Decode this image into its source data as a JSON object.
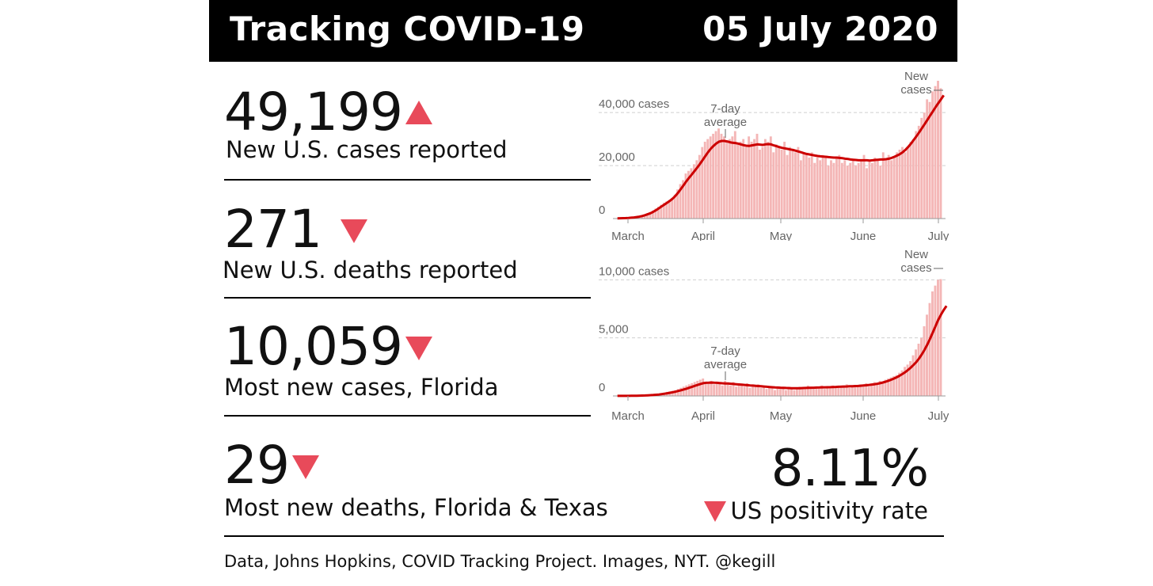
{
  "header": {
    "title": "Tracking COVID-19",
    "date": "05 July 2020"
  },
  "stats": [
    {
      "value": "49,199",
      "direction": "up",
      "label": "New U.S. cases reported"
    },
    {
      "value": "271",
      "direction": "down",
      "label": "New U.S. deaths reported"
    },
    {
      "value": "10,059",
      "direction": "down",
      "label": "Most new cases, Florida"
    },
    {
      "value": "29",
      "direction": "down",
      "label": "Most new deaths, Florida & Texas"
    }
  ],
  "positivity": {
    "value": "8.11%",
    "direction": "down",
    "label": "US positivity rate"
  },
  "footer": "Data, Johns Hopkins, COVID Tracking Project. Images, NYT. @kegill",
  "colors": {
    "bar": "#f4b6b6",
    "line": "#cc0000",
    "arrow": "#e84a5a"
  },
  "chart_data": [
    {
      "type": "bar",
      "title": "",
      "unit_label": "40,000 cases",
      "xlabel": "",
      "ylabel": "",
      "ylim": [
        0,
        52000
      ],
      "y_ticks": [
        0,
        20000,
        40000
      ],
      "y_tick_labels": [
        "0",
        "20,000",
        "40,000 cases"
      ],
      "x_ticks": [
        "March",
        "April",
        "May",
        "June",
        "July"
      ],
      "annotations": {
        "average": [
          "7-day",
          "average"
        ],
        "bars": [
          "New",
          "cases"
        ]
      },
      "series": [
        {
          "kind": "bars",
          "values": [
            100,
            120,
            150,
            200,
            300,
            400,
            500,
            700,
            900,
            1200,
            1600,
            2000,
            2500,
            3000,
            3800,
            4500,
            5200,
            6000,
            6500,
            7000,
            7800,
            9000,
            11000,
            13000,
            14500,
            17000,
            18000,
            19000,
            20500,
            22000,
            24000,
            27000,
            29000,
            30000,
            31000,
            32000,
            33000,
            34000,
            32000,
            31000,
            29000,
            30000,
            31000,
            33000,
            28000,
            29000,
            30000,
            27000,
            31000,
            29000,
            30000,
            32000,
            26000,
            27000,
            30000,
            29000,
            31000,
            25000,
            28000,
            27000,
            26000,
            29000,
            24000,
            27000,
            26000,
            25000,
            27000,
            22000,
            25000,
            24000,
            23000,
            25000,
            21000,
            23000,
            22000,
            24000,
            23000,
            20000,
            22000,
            21000,
            23000,
            24000,
            21000,
            22000,
            20000,
            21000,
            22000,
            20000,
            21000,
            22000,
            24000,
            19000,
            22000,
            21000,
            23000,
            22000,
            20000,
            25000,
            22000,
            24000,
            22000,
            23000,
            25000,
            26000,
            27000,
            25000,
            27000,
            29000,
            30000,
            33000,
            35000,
            38000,
            40000,
            45000,
            44000,
            48000,
            50000,
            52000,
            49199
          ]
        },
        {
          "kind": "line",
          "name": "7-day average",
          "values": [
            100,
            120,
            140,
            180,
            250,
            330,
            430,
            560,
            720,
            950,
            1250,
            1600,
            2000,
            2500,
            3100,
            3800,
            4500,
            5200,
            5900,
            6600,
            7400,
            8400,
            9600,
            11000,
            12400,
            13900,
            15200,
            16500,
            17800,
            19100,
            20500,
            22000,
            23500,
            25000,
            26300,
            27400,
            28300,
            29000,
            29300,
            29300,
            29100,
            28800,
            28600,
            28500,
            28300,
            28000,
            27700,
            27500,
            27400,
            27600,
            27800,
            28000,
            27900,
            27800,
            28000,
            28100,
            28000,
            27600,
            27300,
            27000,
            26700,
            26500,
            26300,
            26100,
            25900,
            25600,
            25300,
            25000,
            24700,
            24400,
            24200,
            24000,
            23800,
            23600,
            23500,
            23400,
            23300,
            23200,
            23100,
            23000,
            23000,
            22900,
            22800,
            22600,
            22500,
            22300,
            22200,
            22100,
            22000,
            22000,
            22000,
            22000,
            21900,
            22000,
            22100,
            22200,
            22300,
            22300,
            22400,
            22600,
            22900,
            23300,
            23800,
            24300,
            25000,
            25900,
            27000,
            28200,
            29600,
            31000,
            32500,
            34000,
            35600,
            37200,
            38800,
            40400,
            42000,
            43500,
            45000,
            46500
          ]
        }
      ]
    },
    {
      "type": "bar",
      "title": "",
      "unit_label": "10,000 cases",
      "xlabel": "",
      "ylabel": "",
      "ylim": [
        0,
        12000
      ],
      "y_ticks": [
        0,
        5000,
        10000
      ],
      "y_tick_labels": [
        "0",
        "5,000",
        "10,000 cases"
      ],
      "x_ticks": [
        "March",
        "April",
        "May",
        "June",
        "July"
      ],
      "annotations": {
        "average": [
          "7-day",
          "average"
        ],
        "bars": [
          "New",
          "cases"
        ]
      },
      "series": [
        {
          "kind": "bars",
          "values": [
            5,
            5,
            8,
            10,
            15,
            20,
            25,
            30,
            40,
            50,
            60,
            80,
            100,
            130,
            160,
            200,
            250,
            300,
            350,
            400,
            450,
            500,
            600,
            700,
            800,
            900,
            1000,
            1100,
            1200,
            1300,
            1400,
            1500,
            1200,
            1100,
            1300,
            1000,
            1200,
            1100,
            900,
            1300,
            1000,
            900,
            1200,
            800,
            1000,
            900,
            800,
            1100,
            700,
            900,
            800,
            1000,
            700,
            800,
            600,
            700,
            800,
            500,
            700,
            600,
            700,
            500,
            600,
            700,
            500,
            600,
            800,
            700,
            600,
            900,
            700,
            600,
            800,
            700,
            900,
            600,
            800,
            700,
            900,
            800,
            700,
            900,
            800,
            1000,
            700,
            800,
            900,
            800,
            1000,
            900,
            1100,
            800,
            1000,
            1200,
            1100,
            1300,
            1200,
            1400,
            1500,
            1600,
            1700,
            1800,
            2000,
            2200,
            2500,
            2700,
            3000,
            3500,
            4000,
            4500,
            5000,
            6000,
            7000,
            8000,
            9000,
            9500,
            10000,
            10059
          ]
        },
        {
          "kind": "line",
          "name": "7-day average",
          "values": [
            5,
            5,
            6,
            8,
            10,
            13,
            17,
            21,
            27,
            34,
            42,
            52,
            65,
            82,
            100,
            125,
            155,
            190,
            230,
            275,
            320,
            370,
            430,
            490,
            560,
            630,
            710,
            790,
            870,
            950,
            1030,
            1100,
            1130,
            1140,
            1150,
            1140,
            1130,
            1110,
            1090,
            1080,
            1070,
            1050,
            1030,
            1010,
            990,
            970,
            950,
            930,
            910,
            890,
            870,
            850,
            830,
            810,
            790,
            770,
            750,
            730,
            720,
            710,
            700,
            690,
            680,
            670,
            660,
            660,
            670,
            680,
            690,
            700,
            710,
            710,
            720,
            730,
            740,
            740,
            750,
            760,
            770,
            780,
            790,
            800,
            810,
            820,
            830,
            840,
            850,
            860,
            880,
            900,
            920,
            950,
            980,
            1010,
            1050,
            1100,
            1160,
            1230,
            1310,
            1400,
            1500,
            1610,
            1740,
            1880,
            2040,
            2220,
            2420,
            2650,
            2900,
            3200,
            3550,
            3950,
            4400,
            4900,
            5450,
            6000,
            6550,
            7000,
            7400,
            7750
          ]
        }
      ]
    }
  ]
}
